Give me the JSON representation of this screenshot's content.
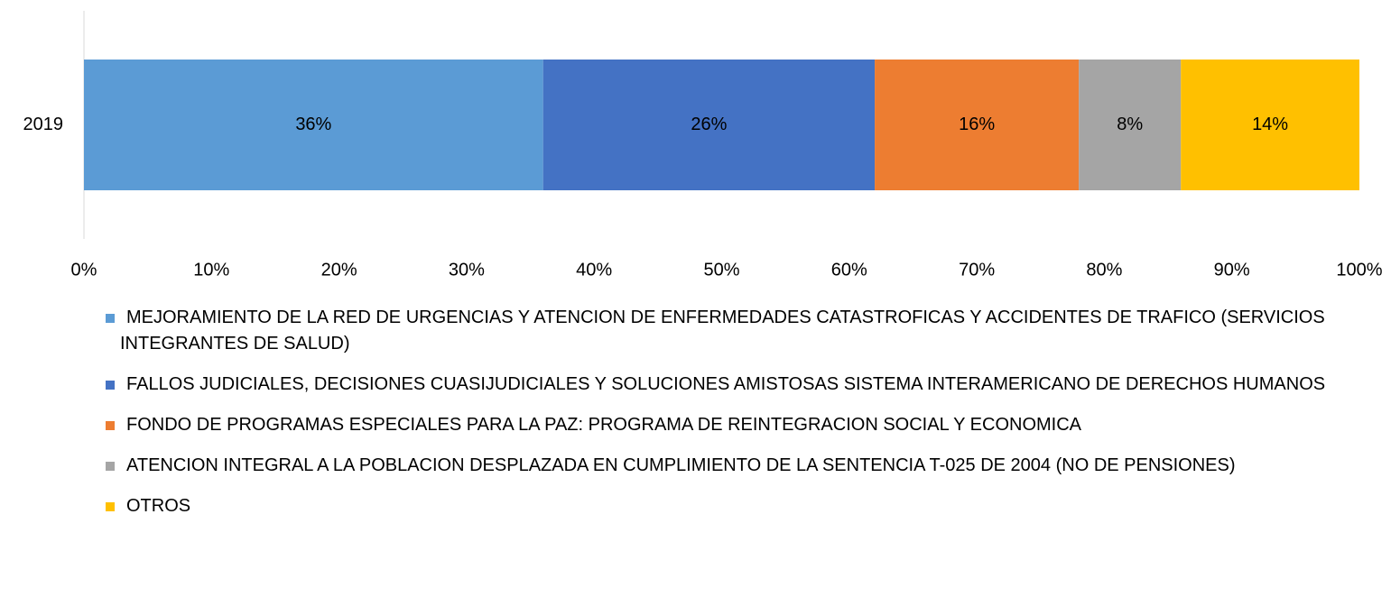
{
  "chart_data": {
    "type": "stacked-bar-horizontal",
    "categories": [
      "2019"
    ],
    "series": [
      {
        "name": "MEJORAMIENTO DE LA RED DE URGENCIAS Y ATENCION DE ENFERMEDADES CATASTROFICAS Y ACCIDENTES DE TRAFICO (SERVICIOS INTEGRANTES DE SALUD)",
        "color": "#5b9bd5",
        "values": [
          36
        ],
        "value_labels": [
          "36%"
        ]
      },
      {
        "name": "FALLOS JUDICIALES, DECISIONES CUASIJUDICIALES Y SOLUCIONES AMISTOSAS SISTEMA INTERAMERICANO DE DERECHOS HUMANOS",
        "color": "#4472c4",
        "values": [
          26
        ],
        "value_labels": [
          "26%"
        ]
      },
      {
        "name": "FONDO DE PROGRAMAS ESPECIALES PARA LA PAZ: PROGRAMA DE REINTEGRACION SOCIAL Y ECONOMICA",
        "color": "#ed7d31",
        "values": [
          16
        ],
        "value_labels": [
          "16%"
        ]
      },
      {
        "name": "ATENCION INTEGRAL A LA POBLACION DESPLAZADA EN CUMPLIMIENTO DE LA SENTENCIA T-025 DE 2004 (NO DE PENSIONES)",
        "color": "#a5a5a5",
        "values": [
          8
        ],
        "value_labels": [
          "8%"
        ]
      },
      {
        "name": "OTROS",
        "color": "#ffc000",
        "values": [
          14
        ],
        "value_labels": [
          "14%"
        ]
      }
    ],
    "xlim": [
      0,
      100
    ],
    "xticks": [
      {
        "value": 0,
        "label": "0%"
      },
      {
        "value": 10,
        "label": "10%"
      },
      {
        "value": 20,
        "label": "20%"
      },
      {
        "value": 30,
        "label": "30%"
      },
      {
        "value": 40,
        "label": "40%"
      },
      {
        "value": 50,
        "label": "50%"
      },
      {
        "value": 60,
        "label": "60%"
      },
      {
        "value": 70,
        "label": "70%"
      },
      {
        "value": 80,
        "label": "80%"
      },
      {
        "value": 90,
        "label": "90%"
      },
      {
        "value": 100,
        "label": "100%"
      }
    ],
    "grid": false,
    "legend": "bottom"
  }
}
